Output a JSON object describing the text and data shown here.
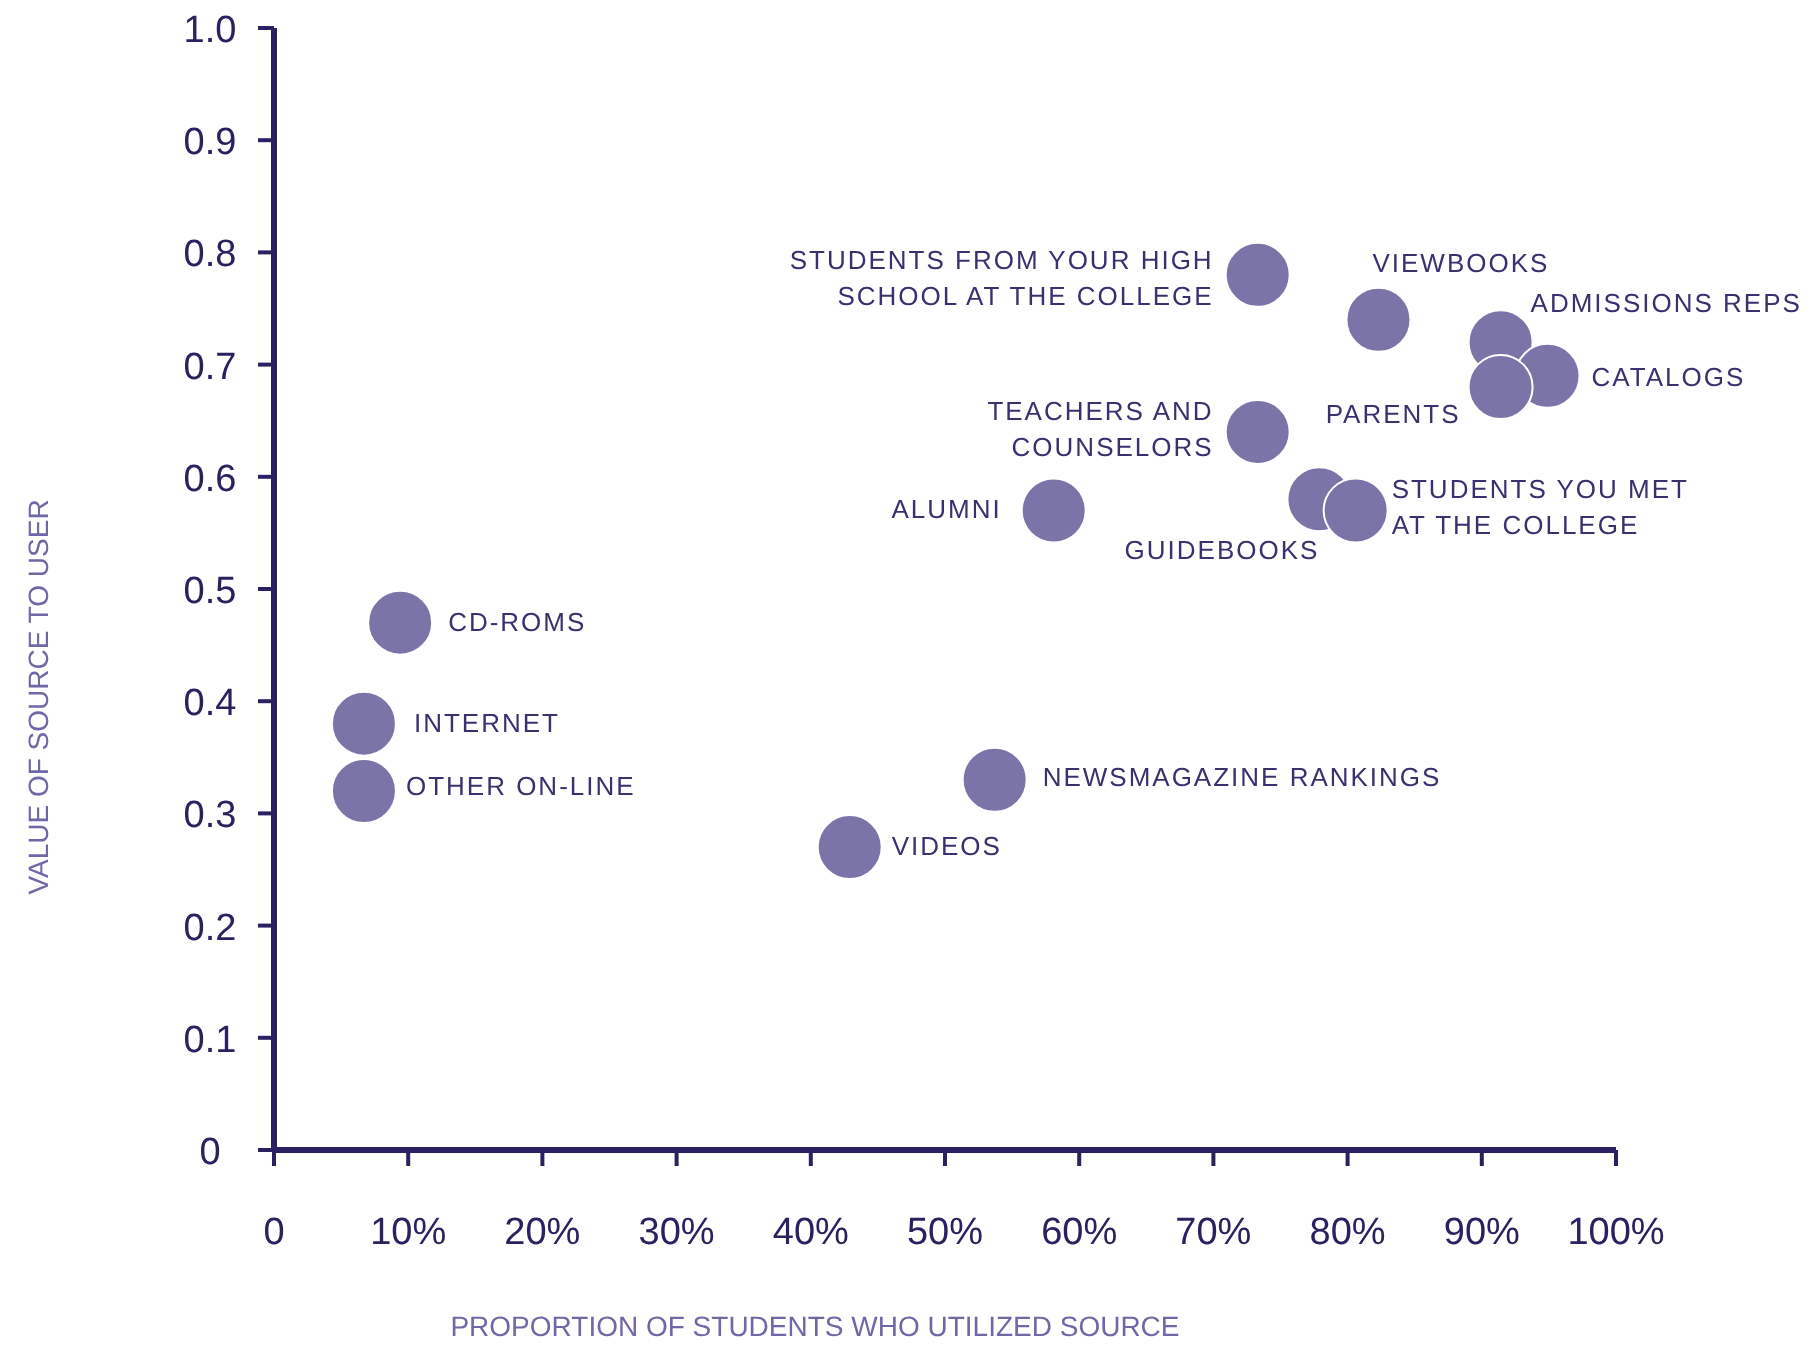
{
  "chart_data": {
    "type": "scatter",
    "xlabel": "PROPORTION OF STUDENTS WHO UTILIZED SOURCE",
    "ylabel": "VALUE OF SOURCE TO USER",
    "marker": "circle",
    "color": "#7b74a8",
    "x": [
      73.3,
      82.3,
      91.4,
      94.9,
      91.4,
      73.3,
      58.1,
      77.9,
      80.6,
      9.4,
      6.7,
      6.7,
      53.7,
      42.9
    ],
    "values": [
      0.78,
      0.74,
      0.72,
      0.69,
      0.68,
      0.64,
      0.57,
      0.58,
      0.57,
      0.47,
      0.38,
      0.32,
      0.33,
      0.27
    ],
    "xlim": [
      0,
      100
    ],
    "ylim": [
      0,
      1
    ],
    "xticks": [
      {
        "value": 0,
        "label": "0"
      },
      {
        "value": 10,
        "label": "10%"
      },
      {
        "value": 20,
        "label": "20%"
      },
      {
        "value": 30,
        "label": "30%"
      },
      {
        "value": 40,
        "label": "40%"
      },
      {
        "value": 50,
        "label": "50%"
      },
      {
        "value": 60,
        "label": "60%"
      },
      {
        "value": 70,
        "label": "70%"
      },
      {
        "value": 80,
        "label": "80%"
      },
      {
        "value": 90,
        "label": "90%"
      },
      {
        "value": 100,
        "label": "100%"
      }
    ],
    "yticks": [
      0,
      0.1,
      0.2,
      0.3,
      0.4,
      0.5,
      0.6,
      0.7,
      0.8,
      0.9,
      {
        "value": 1,
        "label": "1.0"
      }
    ],
    "annotations": [
      {
        "text": "STUDENTS FROM YOUR HIGH\nSCHOOL AT THE COLLEGE",
        "x": 73.3,
        "y": 0.78
      },
      {
        "text": "VIEWBOOKS",
        "x": 82.3,
        "y": 0.74
      },
      {
        "text": "ADMISSIONS REPS",
        "x": 91.4,
        "y": 0.72
      },
      {
        "text": "CATALOGS",
        "x": 94.9,
        "y": 0.69
      },
      {
        "text": "PARENTS",
        "x": 91.4,
        "y": 0.68
      },
      {
        "text": "TEACHERS AND\nCOUNSELORS",
        "x": 73.3,
        "y": 0.64
      },
      {
        "text": "ALUMNI",
        "x": 58.1,
        "y": 0.57
      },
      {
        "text": "GUIDEBOOKS",
        "x": 77.9,
        "y": 0.58
      },
      {
        "text": "STUDENTS YOU MET\nAT THE COLLEGE",
        "x": 80.6,
        "y": 0.57
      },
      {
        "text": "CD-ROMS",
        "x": 9.4,
        "y": 0.47
      },
      {
        "text": "INTERNET",
        "x": 6.7,
        "y": 0.38
      },
      {
        "text": "OTHER ON-LINE",
        "x": 6.7,
        "y": 0.32
      },
      {
        "text": "NEWSMAGAZINE RANKINGS",
        "x": 53.7,
        "y": 0.33
      },
      {
        "text": "VIDEOS",
        "x": 42.9,
        "y": 0.27
      }
    ]
  }
}
